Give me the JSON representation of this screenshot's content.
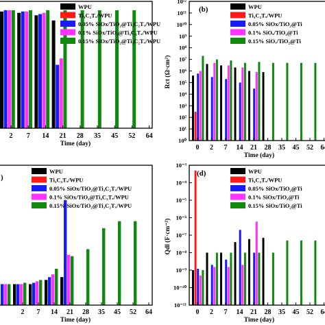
{
  "colors": {
    "WPU": "#000000",
    "Ti3C2Tx/WPU": "#ff1a1a",
    "0.05%": "#1a1aff",
    "0.1%": "#ff33ff",
    "0.15%": "#0f8a0f"
  },
  "chart_data": [
    {
      "panel": "a",
      "type": "bar",
      "xlabel": "Time (day)",
      "ylabel": "",
      "categories": [
        "2",
        "7",
        "14",
        "21",
        "28",
        "35",
        "45",
        "52",
        "64"
      ],
      "ylim": [
        0,
        100
      ],
      "legend": [
        "WPU",
        "Ti₃C₂Tₓ/WPU",
        "0.05% SiOx/TiO₂@Ti₃C₂Tₓ/WPU",
        "0.1% SiOx/TiO₂@Ti₃C₂Tₓ/WPU",
        "0.15% SiOx/TiO₂@Ti₃C₂Tₓ/WPU"
      ],
      "series": [
        {
          "name": "WPU",
          "values": [
            92,
            91,
            89,
            85,
            null,
            null,
            null,
            null,
            null
          ]
        },
        {
          "name": "0.05% SiOx/TiO₂@Ti₃C₂Tₓ/WPU",
          "values": [
            93,
            92,
            90,
            50,
            null,
            null,
            null,
            null,
            null
          ]
        },
        {
          "name": "0.1% SiOx/TiO₂@Ti₃C₂Tₓ/WPU",
          "values": [
            93,
            92,
            91,
            55,
            null,
            null,
            null,
            null,
            null
          ]
        },
        {
          "name": "0.15% SiOx/TiO₂@Ti₃C₂Tₓ/WPU",
          "values": [
            93,
            93,
            93,
            93,
            93,
            93,
            93,
            93,
            93
          ]
        }
      ]
    },
    {
      "panel": "b",
      "type": "bar",
      "xlabel": "Time (day)",
      "ylabel": "Rct (Ω·cm²)",
      "log": true,
      "yticks": [
        "10⁰",
        "10¹",
        "10²",
        "10³",
        "10⁴",
        "10⁵",
        "10⁶",
        "10⁷",
        "10⁸",
        "10⁹",
        "10¹⁰",
        "10¹¹",
        "10¹²"
      ],
      "ylim": [
        1,
        1000000000000.0
      ],
      "categories": [
        "0",
        "2",
        "7",
        "14",
        "21",
        "28",
        "35",
        "45",
        "52",
        "64"
      ],
      "legend": [
        "WPU",
        "Ti₃C₂Tₓ/WPU",
        "0.05% SiOx/TiO₂@Ti",
        "0.1% SiOₓ/TiO₂@Ti",
        "0.15% SiOₓ/TiO₂@Ti"
      ],
      "series": [
        {
          "name": "WPU",
          "values": [
            400000.0,
            4000000.0,
            3000000.0,
            2000000.0,
            1000000.0,
            800000.0,
            null,
            null,
            null,
            null
          ]
        },
        {
          "name": "Ti₃C₂Tₓ/WPU",
          "values": [
            300.0,
            null,
            null,
            null,
            null,
            null,
            null,
            null,
            null,
            null
          ]
        },
        {
          "name": "0.05% SiOx/TiO₂@Ti",
          "values": [
            600000.0,
            300000.0,
            200000.0,
            100000.0,
            30000.0,
            null,
            null,
            null,
            null,
            null
          ]
        },
        {
          "name": "0.1% SiOₓ/TiO₂@Ti",
          "values": [
            1000000.0,
            5000000.0,
            3000000.0,
            2000000.0,
            800000.0,
            null,
            null,
            null,
            null,
            null
          ]
        },
        {
          "name": "0.15% SiOₓ/TiO₂@Ti",
          "values": [
            20000000.0,
            10000000.0,
            8000000.0,
            5000000.0,
            6000000.0,
            5000000.0,
            5000000.0,
            5000000.0,
            5000000.0,
            5000000.0
          ]
        }
      ]
    },
    {
      "panel": "c",
      "type": "bar",
      "xlabel": "Time (day)",
      "ylabel": "",
      "categories": [
        "0",
        "2",
        "7",
        "14",
        "21",
        "28",
        "35",
        "45",
        "52",
        "64"
      ],
      "ylim": [
        0,
        100
      ],
      "legend": [
        "WPU",
        "Ti₃C₂Tₓ/WPU",
        "0.05% SiOx/TiO₂@Ti₃C₂Tₓ/WPU",
        "0.1% SiOx/TiO₂@Ti₃C₂Tₓ/WPU",
        "0.15% SiOx/TiO₂@Ti₃C₂Tₓ/WPU"
      ],
      "series": [
        {
          "name": "WPU",
          "values": [
            15,
            15,
            15,
            18,
            20,
            null,
            null,
            null,
            null,
            null
          ]
        },
        {
          "name": "0.05% SiOx/TiO₂@Ti₃C₂Tₓ/WPU",
          "values": [
            15,
            15,
            16,
            20,
            75,
            null,
            null,
            null,
            null,
            null
          ]
        },
        {
          "name": "0.1% SiOx/TiO₂@Ti₃C₂Tₓ/WPU",
          "values": [
            15,
            15,
            17,
            22,
            36,
            null,
            null,
            null,
            null,
            null
          ]
        },
        {
          "name": "0.15% SiOx/TiO₂@Ti₃C₂Tₓ/WPU",
          "values": [
            15,
            16,
            18,
            26,
            35,
            40,
            55,
            60,
            60,
            60
          ]
        }
      ]
    },
    {
      "panel": "d",
      "type": "bar",
      "xlabel": "Time (day)",
      "ylabel": "Qdl (F·cm⁻²)",
      "log": true,
      "yticks": [
        "10⁻¹¹",
        "10⁻¹⁰",
        "10⁻⁹",
        "10⁻⁸",
        "10⁻⁷",
        "10⁻⁶",
        "10⁻⁵",
        "10⁻⁴",
        "10⁻³"
      ],
      "ylim": [
        1e-11,
        0.001
      ],
      "categories": [
        "0",
        "2",
        "7",
        "14",
        "21",
        "28",
        "35",
        "45",
        "52",
        "64"
      ],
      "legend": [
        "WPU",
        "Ti₃C₂Tₓ/WPU",
        "0.05% SiOx/TiO₂@Ti",
        "0.1% SiOx/TiO₂@Ti",
        "0.15% SiOx/TiO₂@Ti"
      ],
      "series": [
        {
          "name": "WPU",
          "values": [
            1e-09,
            1e-08,
            1e-08,
            4e-08,
            6e-08,
            7e-08,
            null,
            null,
            null,
            null
          ]
        },
        {
          "name": "Ti₃C₂Tₓ/WPU",
          "values": [
            0.0005,
            null,
            null,
            null,
            null,
            null,
            null,
            null,
            null,
            null
          ]
        },
        {
          "name": "0.05% SiOx/TiO₂@Ti",
          "values": [
            1.2e-09,
            2e-09,
            4e-09,
            2e-07,
            1e-08,
            null,
            null,
            null,
            null,
            null
          ]
        },
        {
          "name": "0.1% SiOx/TiO₂@Ti",
          "values": [
            5e-10,
            1.5e-09,
            1.5e-09,
            2e-09,
            6e-07,
            null,
            null,
            null,
            null,
            null
          ]
        },
        {
          "name": "0.15% SiOx/TiO₂@Ti",
          "values": [
            1e-09,
            1e-08,
            1e-08,
            1e-08,
            1e-08,
            1e-08,
            5e-08,
            5e-08,
            5e-08,
            5e-08
          ]
        }
      ]
    }
  ],
  "labels": {
    "a": {
      "x_title": "Time (day)",
      "ticks": [
        "2",
        "7",
        "14",
        "21",
        "28",
        "35",
        "45",
        "52",
        "64"
      ]
    },
    "b": {
      "panel_tag": "(b)",
      "y_title": "Rct (Ω·cm²)"
    },
    "c": {
      "panel_tag": ")",
      "x_title": "Time (day)"
    },
    "d": {
      "panel_tag": "(d)",
      "y_title": "Qdl (F·cm⁻²)"
    }
  }
}
